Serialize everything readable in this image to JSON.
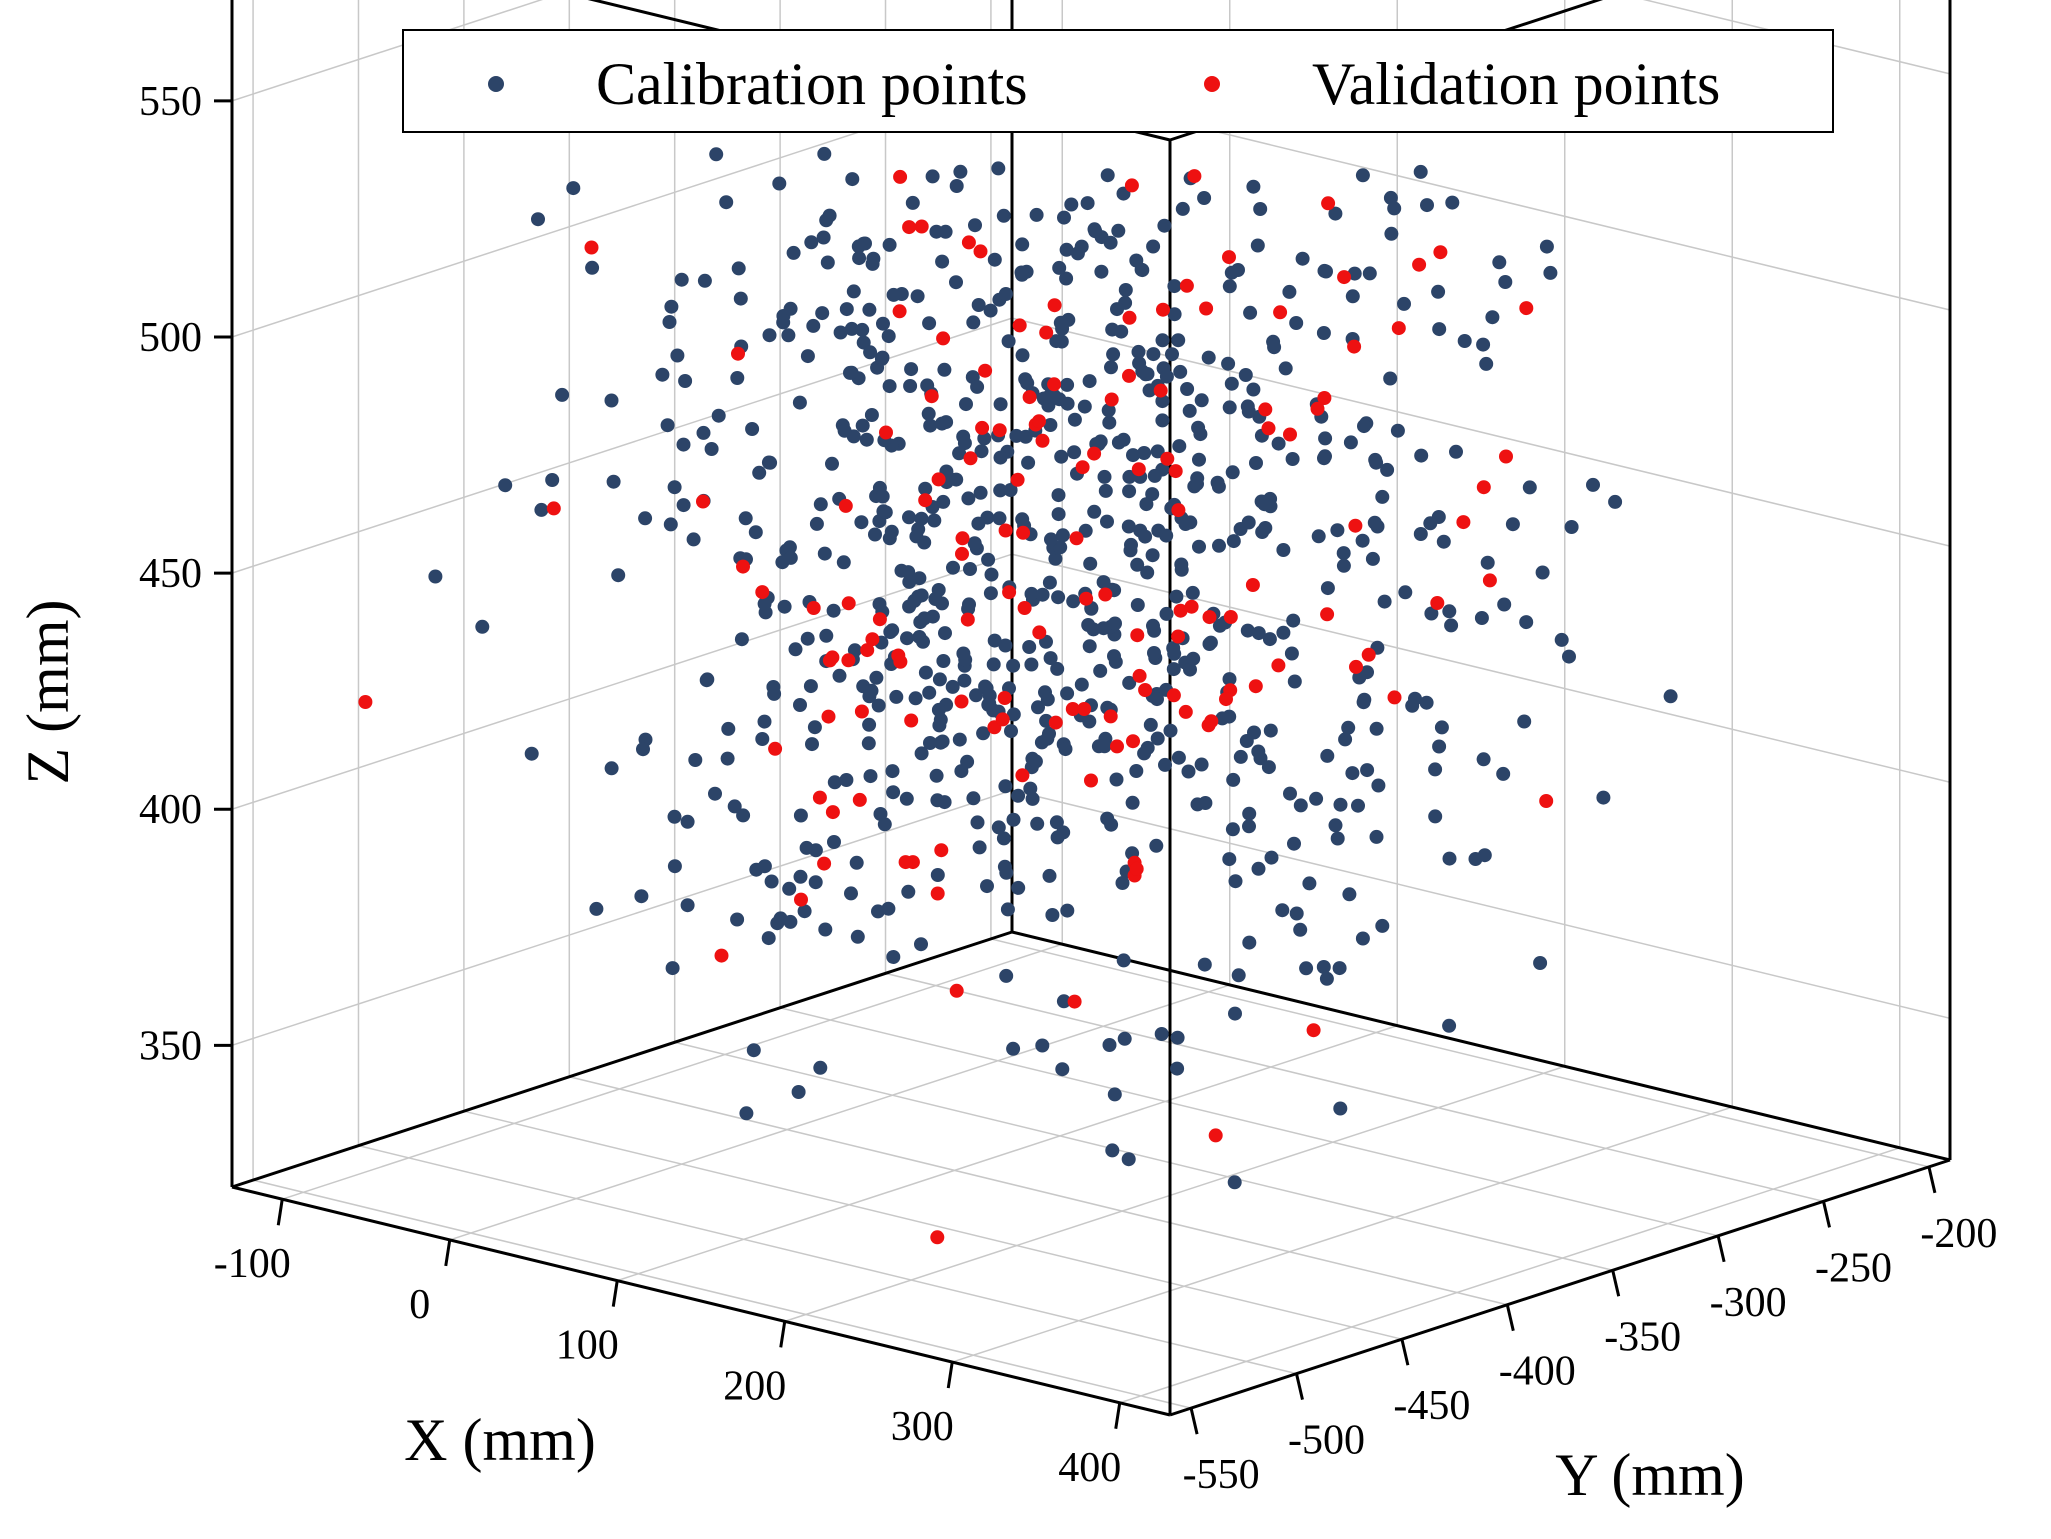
{
  "chart_data": {
    "type": "scatter",
    "subtype": "3d-scatter",
    "title": "",
    "legend_position": "top-center",
    "xlabel": "X (mm)",
    "ylabel": "Y (mm)",
    "zlabel": "Z (mm)",
    "xlim": [
      -130,
      430
    ],
    "ylim": [
      -560,
      -190
    ],
    "zlim": [
      320,
      590
    ],
    "x_ticks": [
      -100,
      0,
      100,
      200,
      300,
      400
    ],
    "y_ticks": [
      -550,
      -500,
      -450,
      -400,
      -350,
      -300,
      -250,
      -200
    ],
    "z_ticks": [
      350,
      400,
      450,
      500,
      550
    ],
    "grid": true,
    "series": [
      {
        "name": "Calibration points",
        "color": "#2c4468",
        "count": 880,
        "seed": 7
      },
      {
        "name": "Validation points",
        "color": "#ee1111",
        "count": 150,
        "seed": 31
      }
    ],
    "distribution": {
      "x_mean": 160,
      "x_sd": 95,
      "y_mean": -390,
      "y_sd": 70,
      "z_mean": 460,
      "z_sd": 50
    }
  }
}
